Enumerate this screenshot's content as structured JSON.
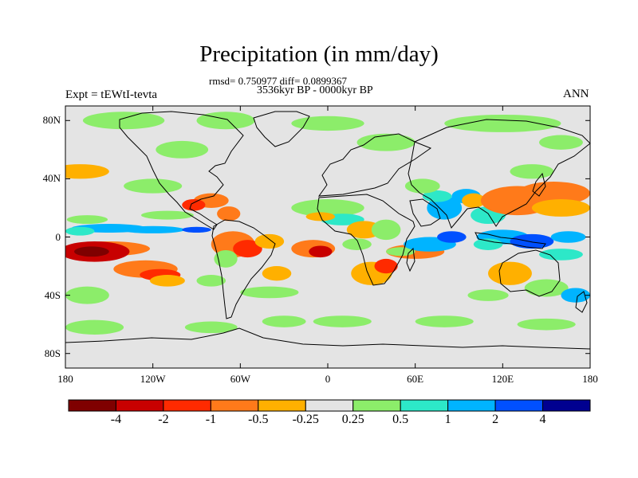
{
  "title": "Precipitation (in mm/day)",
  "stats": "rmsd= 0.750977 diff= 0.0899367",
  "period": "3536kyr BP - 0000kyr BP",
  "experiment": "Expt = tEWtI-tevta",
  "season": "ANN",
  "axes": {
    "lat_labels": [
      "80N",
      "40N",
      "0",
      "40S",
      "80S"
    ],
    "lon_labels": [
      "180",
      "120W",
      "60W",
      "0",
      "60E",
      "120E",
      "180"
    ]
  },
  "colorbar": {
    "colors": [
      "#7f0000",
      "#c80000",
      "#ff2a00",
      "#ff7a1a",
      "#ffb000",
      "#e4e4e4",
      "#8ced6a",
      "#2de8c8",
      "#00b4ff",
      "#0050ff",
      "#000090"
    ],
    "labels": [
      "-4",
      "-2",
      "-1",
      "-0.5",
      "-0.25",
      "0.25",
      "0.5",
      "1",
      "2",
      "4"
    ]
  }
}
